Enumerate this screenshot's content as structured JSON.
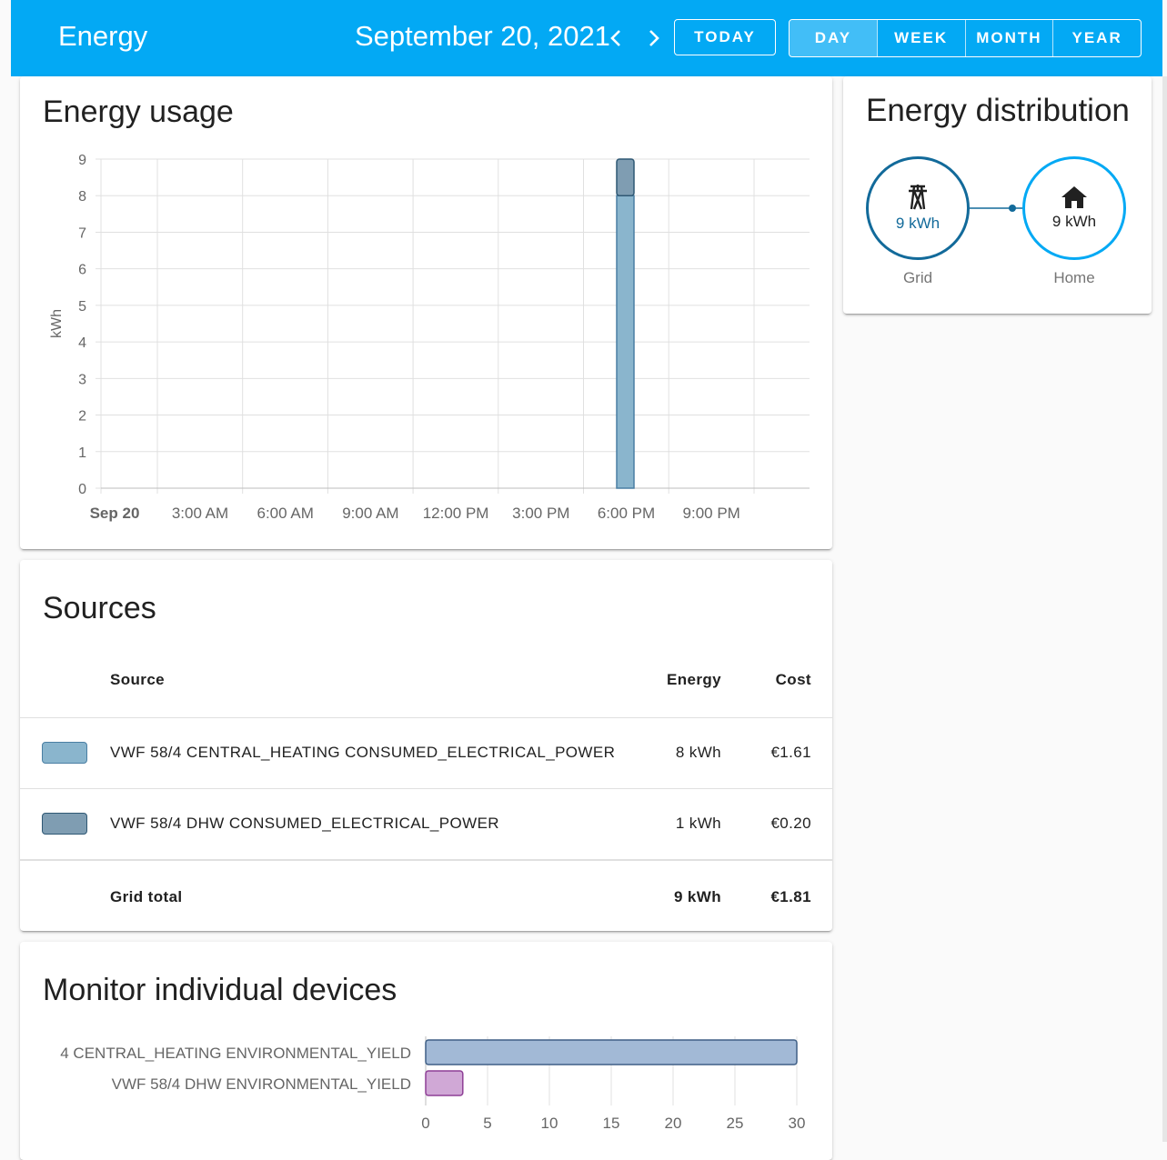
{
  "header": {
    "title": "Energy",
    "date": "September 20, 2021",
    "today_label": "TODAY",
    "periods": [
      "DAY",
      "WEEK",
      "MONTH",
      "YEAR"
    ],
    "active_period": "DAY"
  },
  "usage": {
    "title": "Energy usage",
    "chart_data": {
      "type": "bar",
      "ylabel": "kWh",
      "ylim": [
        0,
        9
      ],
      "yticks": [
        "0",
        "1",
        "2",
        "3",
        "4",
        "5",
        "6",
        "7",
        "8",
        "9"
      ],
      "xticks": [
        "Sep 20",
        "3:00 AM",
        "6:00 AM",
        "9:00 AM",
        "12:00 PM",
        "3:00 PM",
        "6:00 PM",
        "9:00 PM"
      ],
      "series": [
        {
          "name": "VWF 58/4 CENTRAL_HEATING CONSUMED_ELECTRICAL_POWER",
          "color": "#8ab5cd",
          "points": [
            {
              "hour": 18,
              "value": 8
            }
          ]
        },
        {
          "name": "VWF 58/4 DHW CONSUMED_ELECTRICAL_POWER",
          "color": "#7f9db2",
          "points": [
            {
              "hour": 18,
              "value": 1
            }
          ]
        }
      ],
      "grid": true
    }
  },
  "distribution": {
    "title": "Energy distribution",
    "grid": {
      "value": "9 kWh",
      "label": "Grid",
      "color": "#126a9a"
    },
    "home": {
      "value": "9 kWh",
      "label": "Home",
      "color": "#03a9f4"
    }
  },
  "sources": {
    "title": "Sources",
    "columns": {
      "source": "Source",
      "energy": "Energy",
      "cost": "Cost"
    },
    "rows": [
      {
        "name": "VWF 58/4 CENTRAL_HEATING CONSUMED_ELECTRICAL_POWER",
        "energy": "8 kWh",
        "cost": "€1.61",
        "color": "#8ab5cd"
      },
      {
        "name": "VWF 58/4 DHW CONSUMED_ELECTRICAL_POWER",
        "energy": "1 kWh",
        "cost": "€0.20",
        "color": "#7f9db2"
      }
    ],
    "total": {
      "label": "Grid total",
      "energy": "9 kWh",
      "cost": "€1.81"
    }
  },
  "devices": {
    "title": "Monitor individual devices",
    "chart_data": {
      "type": "bar",
      "orientation": "horizontal",
      "categories": [
        "4 CENTRAL_HEATING ENVIRONMENTAL_YIELD",
        "VWF 58/4 DHW ENVIRONMENTAL_YIELD"
      ],
      "values": [
        30,
        3
      ],
      "colors": [
        "#a2b9d6",
        "#d0a8d6"
      ],
      "xlim": [
        0,
        30
      ],
      "xticks": [
        "0",
        "5",
        "10",
        "15",
        "20",
        "25",
        "30"
      ],
      "grid": true
    }
  }
}
